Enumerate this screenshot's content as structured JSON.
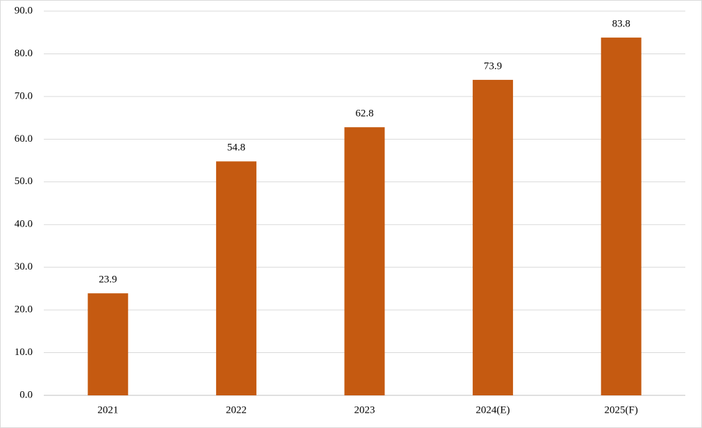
{
  "chart_data": {
    "type": "bar",
    "categories": [
      "2021",
      "2022",
      "2023",
      "2024(E)",
      "2025(F)"
    ],
    "values": [
      23.9,
      54.8,
      62.8,
      73.9,
      83.8
    ],
    "color": "#c55a11",
    "ylim": [
      0,
      90
    ],
    "yticks": [
      {
        "value": 0,
        "label": "0.0"
      },
      {
        "value": 10,
        "label": "10.0"
      },
      {
        "value": 20,
        "label": "20.0"
      },
      {
        "value": 30,
        "label": "30.0"
      },
      {
        "value": 40,
        "label": "40.0"
      },
      {
        "value": 50,
        "label": "50.0"
      },
      {
        "value": 60,
        "label": "60.0"
      },
      {
        "value": 70,
        "label": "70.0"
      },
      {
        "value": 80,
        "label": "80.0"
      },
      {
        "value": 90,
        "label": "90.0"
      }
    ],
    "grid": true
  }
}
